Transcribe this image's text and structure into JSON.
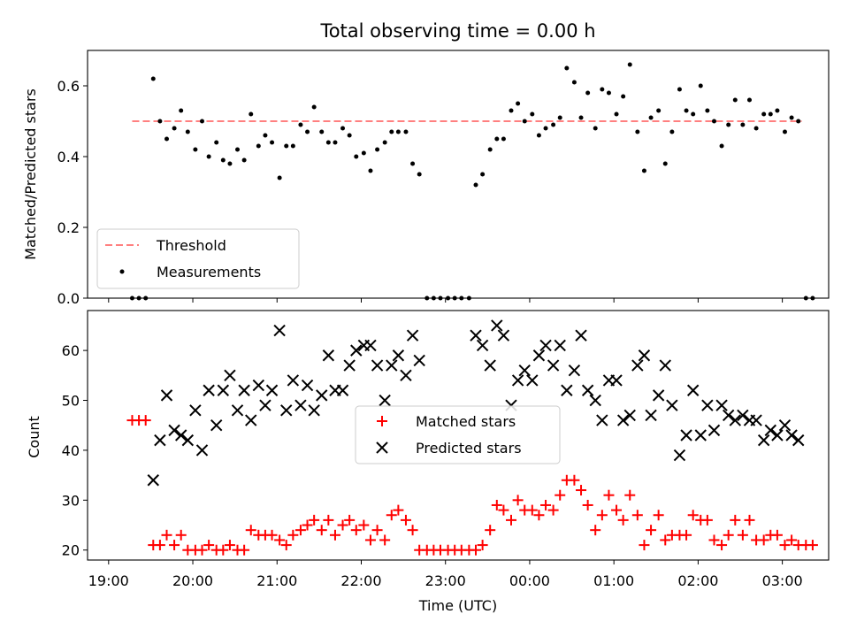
{
  "chart_data": [
    {
      "type": "scatter",
      "title": "Total observing time = 0.00 h",
      "xlabel": "",
      "ylabel": "Matched/Predicted stars",
      "xlim": [
        -0.25,
        8.55
      ],
      "ylim": [
        0,
        0.7
      ],
      "yticks": [
        0.0,
        0.2,
        0.4,
        0.6
      ],
      "ytick_labels": [
        "0.0",
        "0.2",
        "0.4",
        "0.6"
      ],
      "grid": false,
      "legend_position": "lower-left",
      "threshold": {
        "name": "Threshold",
        "y": 0.5,
        "x": [
          0.28,
          8.23
        ],
        "color": "#ff8080",
        "style": "dashed"
      },
      "series": [
        {
          "name": "Measurements",
          "color": "#000000",
          "marker": "dot",
          "x": [
            0.28,
            0.36,
            0.44,
            0.53,
            0.61,
            0.69,
            0.78,
            0.86,
            0.94,
            1.03,
            1.11,
            1.19,
            1.28,
            1.36,
            1.44,
            1.53,
            1.61,
            1.69,
            1.78,
            1.86,
            1.94,
            2.03,
            2.11,
            2.19,
            2.28,
            2.36,
            2.44,
            2.53,
            2.61,
            2.69,
            2.78,
            2.86,
            2.94,
            3.03,
            3.11,
            3.19,
            3.28,
            3.36,
            3.44,
            3.53,
            3.61,
            3.69,
            3.78,
            3.86,
            3.94,
            4.03,
            4.11,
            4.19,
            4.28,
            4.36,
            4.44,
            4.53,
            4.61,
            4.69,
            4.78,
            4.86,
            4.94,
            5.03,
            5.11,
            5.19,
            5.28,
            5.36,
            5.44,
            5.53,
            5.61,
            5.69,
            5.78,
            5.86,
            5.94,
            6.03,
            6.11,
            6.19,
            6.28,
            6.36,
            6.44,
            6.53,
            6.61,
            6.69,
            6.78,
            6.86,
            6.94,
            7.03,
            7.11,
            7.19,
            7.28,
            7.36,
            7.44,
            7.53,
            7.61,
            7.69,
            7.78,
            7.86,
            7.94,
            8.03,
            8.11,
            8.19,
            8.28,
            8.36
          ],
          "y": [
            0,
            0,
            0,
            0.62,
            0.5,
            0.45,
            0.48,
            0.53,
            0.47,
            0.42,
            0.5,
            0.4,
            0.44,
            0.39,
            0.38,
            0.42,
            0.39,
            0.52,
            0.43,
            0.46,
            0.44,
            0.34,
            0.43,
            0.43,
            0.49,
            0.47,
            0.54,
            0.47,
            0.44,
            0.44,
            0.48,
            0.46,
            0.4,
            0.41,
            0.36,
            0.42,
            0.44,
            0.47,
            0.47,
            0.47,
            0.38,
            0.35,
            0,
            0,
            0,
            0,
            0,
            0,
            0,
            0.32,
            0.35,
            0.42,
            0.45,
            0.45,
            0.53,
            0.55,
            0.5,
            0.52,
            0.46,
            0.48,
            0.49,
            0.51,
            0.65,
            0.61,
            0.51,
            0.58,
            0.48,
            0.59,
            0.58,
            0.52,
            0.57,
            0.66,
            0.47,
            0.36,
            0.51,
            0.53,
            0.38,
            0.47,
            0.59,
            0.53,
            0.52,
            0.6,
            0.53,
            0.5,
            0.43,
            0.49,
            0.56,
            0.49,
            0.56,
            0.48,
            0.52,
            0.52,
            0.53,
            0.47,
            0.51,
            0.5,
            0,
            0
          ]
        }
      ]
    },
    {
      "type": "scatter",
      "title": "",
      "xlabel": "Time (UTC)",
      "ylabel": "Count",
      "xlim": [
        -0.25,
        8.55
      ],
      "ylim": [
        18,
        68
      ],
      "xticks": [
        0,
        1,
        2,
        3,
        4,
        5,
        6,
        7,
        8
      ],
      "xtick_labels": [
        "19:00",
        "20:00",
        "21:00",
        "22:00",
        "23:00",
        "00:00",
        "01:00",
        "02:00",
        "03:00"
      ],
      "yticks": [
        20,
        30,
        40,
        50,
        60
      ],
      "ytick_labels": [
        "20",
        "30",
        "40",
        "50",
        "60"
      ],
      "grid": false,
      "legend_position": "center",
      "series": [
        {
          "name": "Matched stars",
          "color": "#ff0000",
          "marker": "plus",
          "x": [
            0.28,
            0.36,
            0.44,
            0.53,
            0.61,
            0.69,
            0.78,
            0.86,
            0.94,
            1.03,
            1.11,
            1.19,
            1.28,
            1.36,
            1.44,
            1.53,
            1.61,
            1.69,
            1.78,
            1.86,
            1.94,
            2.03,
            2.11,
            2.19,
            2.28,
            2.36,
            2.44,
            2.53,
            2.61,
            2.69,
            2.78,
            2.86,
            2.94,
            3.03,
            3.11,
            3.19,
            3.28,
            3.36,
            3.44,
            3.53,
            3.61,
            3.69,
            3.78,
            3.86,
            3.94,
            4.03,
            4.11,
            4.19,
            4.28,
            4.36,
            4.44,
            4.53,
            4.61,
            4.69,
            4.78,
            4.86,
            4.94,
            5.03,
            5.11,
            5.19,
            5.28,
            5.36,
            5.44,
            5.53,
            5.61,
            5.69,
            5.78,
            5.86,
            5.94,
            6.03,
            6.11,
            6.19,
            6.28,
            6.36,
            6.44,
            6.53,
            6.61,
            6.69,
            6.78,
            6.86,
            6.94,
            7.03,
            7.11,
            7.19,
            7.28,
            7.36,
            7.44,
            7.53,
            7.61,
            7.69,
            7.78,
            7.86,
            7.94,
            8.03,
            8.11,
            8.19,
            8.28,
            8.36
          ],
          "y": [
            46,
            46,
            46,
            21,
            21,
            23,
            21,
            23,
            20,
            20,
            20,
            21,
            20,
            20,
            21,
            20,
            20,
            24,
            23,
            23,
            23,
            22,
            21,
            23,
            24,
            25,
            26,
            24,
            26,
            23,
            25,
            26,
            24,
            25,
            22,
            24,
            22,
            27,
            28,
            26,
            24,
            20,
            20,
            20,
            20,
            20,
            20,
            20,
            20,
            20,
            21,
            24,
            29,
            28,
            26,
            30,
            28,
            28,
            27,
            29,
            28,
            31,
            34,
            34,
            32,
            29,
            24,
            27,
            31,
            28,
            26,
            31,
            27,
            21,
            24,
            27,
            22,
            23,
            23,
            23,
            27,
            26,
            26,
            22,
            21,
            23,
            26,
            23,
            26,
            22,
            22,
            23,
            23,
            21,
            22,
            21,
            21,
            21
          ]
        },
        {
          "name": "Predicted stars",
          "color": "#000000",
          "marker": "x",
          "x": [
            0.53,
            0.61,
            0.69,
            0.78,
            0.86,
            0.94,
            1.03,
            1.11,
            1.19,
            1.28,
            1.36,
            1.44,
            1.53,
            1.61,
            1.69,
            1.78,
            1.86,
            1.94,
            2.03,
            2.11,
            2.19,
            2.28,
            2.36,
            2.44,
            2.53,
            2.61,
            2.69,
            2.78,
            2.86,
            2.94,
            3.03,
            3.11,
            3.19,
            3.28,
            3.36,
            3.44,
            3.53,
            3.61,
            3.69,
            4.36,
            4.44,
            4.53,
            4.61,
            4.69,
            4.78,
            4.86,
            4.94,
            5.03,
            5.11,
            5.19,
            5.28,
            5.36,
            5.44,
            5.53,
            5.61,
            5.69,
            5.78,
            5.86,
            5.94,
            6.03,
            6.11,
            6.19,
            6.28,
            6.36,
            6.44,
            6.53,
            6.61,
            6.69,
            6.78,
            6.86,
            6.94,
            7.03,
            7.11,
            7.19,
            7.28,
            7.36,
            7.44,
            7.53,
            7.61,
            7.69,
            7.78,
            7.86,
            7.94,
            8.03,
            8.11,
            8.19
          ],
          "y": [
            34,
            42,
            51,
            44,
            43,
            42,
            48,
            40,
            52,
            45,
            52,
            55,
            48,
            52,
            46,
            53,
            49,
            52,
            64,
            48,
            54,
            49,
            53,
            48,
            51,
            59,
            52,
            52,
            57,
            60,
            61,
            61,
            57,
            50,
            57,
            59,
            55,
            63,
            58,
            63,
            61,
            57,
            65,
            63,
            49,
            54,
            56,
            54,
            59,
            61,
            57,
            61,
            52,
            56,
            63,
            52,
            50,
            46,
            54,
            54,
            46,
            47,
            57,
            59,
            47,
            51,
            57,
            49,
            39,
            43,
            52,
            43,
            49,
            44,
            49,
            47,
            46,
            47,
            46,
            46,
            42,
            44,
            43,
            45,
            43,
            42
          ]
        }
      ]
    }
  ]
}
